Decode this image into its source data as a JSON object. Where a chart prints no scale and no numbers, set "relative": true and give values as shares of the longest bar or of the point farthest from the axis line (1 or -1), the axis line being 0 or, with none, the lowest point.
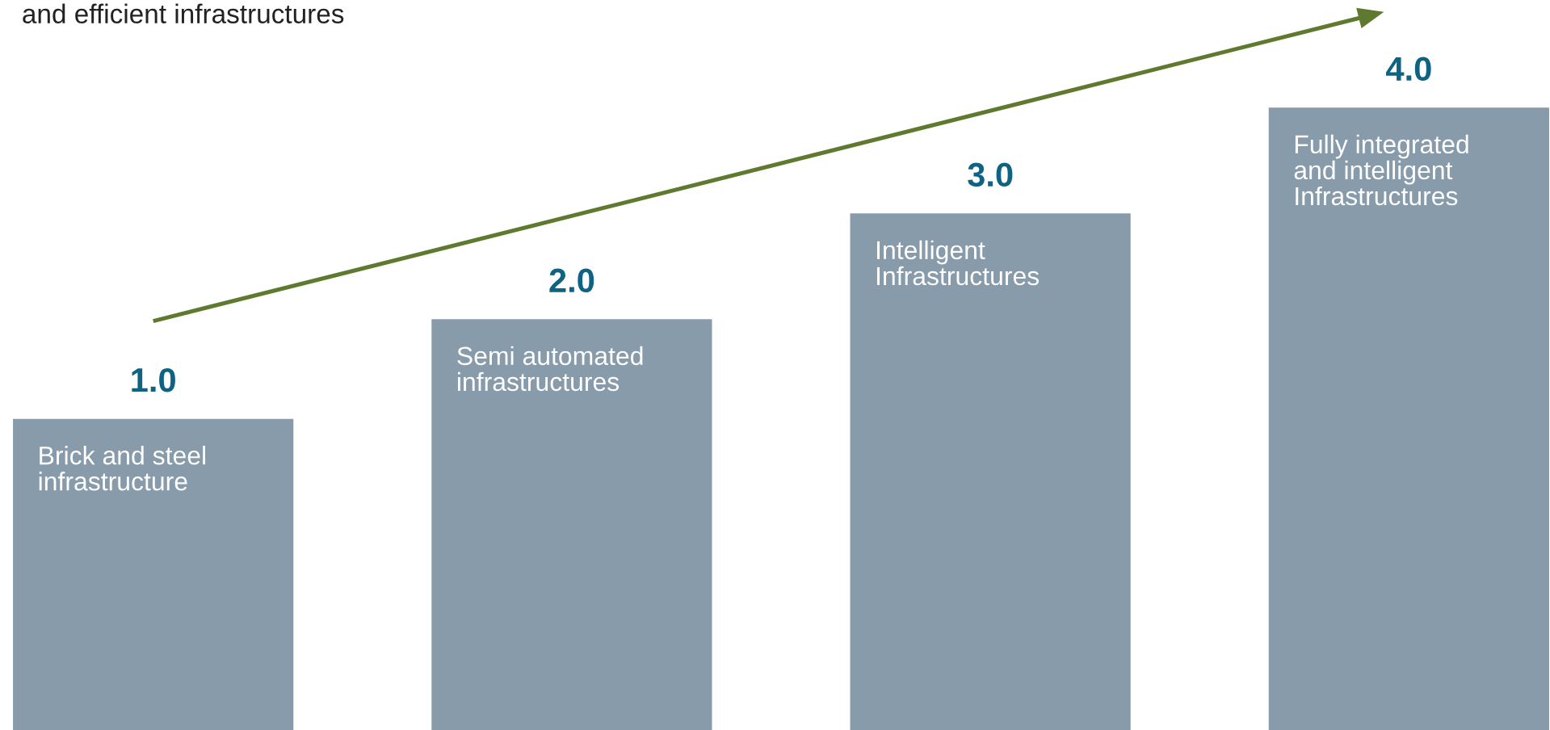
{
  "chart_data": {
    "type": "bar",
    "title": "and efficient infrastructures",
    "categories": [
      "1.0",
      "2.0",
      "3.0",
      "4.0"
    ],
    "values": [
      0.5,
      0.66,
      0.83,
      1
    ],
    "relative": true,
    "color": "#889bab",
    "annotations": [
      {
        "text": "Brick and steel\ninfrastructure",
        "x": "1.0",
        "y": 0.5
      },
      {
        "text": "Semi automated\ninfrastructures",
        "x": "2.0",
        "y": 0.66
      },
      {
        "text": "Intelligent\nInfrastructures",
        "x": "3.0",
        "y": 0.83
      },
      {
        "text": "Fully integrated\nand intelligent\nInfrastructures",
        "x": "4.0",
        "y": 1
      }
    ]
  }
}
